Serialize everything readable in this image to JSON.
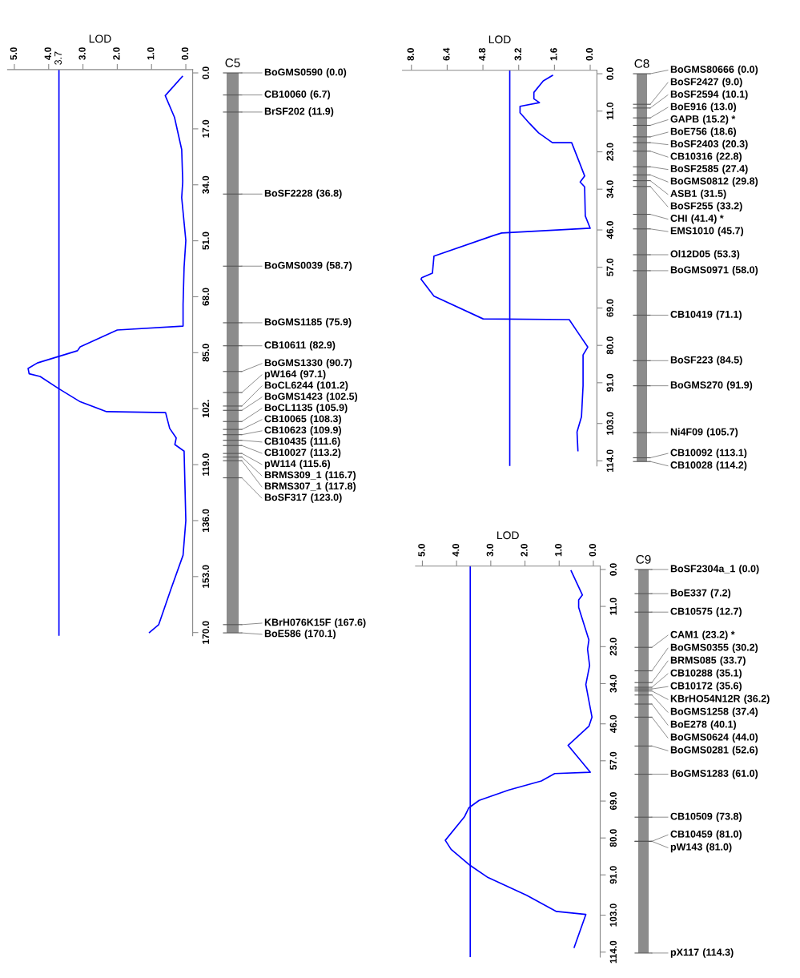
{
  "chart_data": [
    {
      "type": "line",
      "xlabel": "LOD",
      "xlim": [
        5.2,
        -0.2
      ],
      "xticks": [
        {
          "value": 5,
          "label": "5.0"
        },
        {
          "value": 4,
          "label": "4.0"
        },
        {
          "value": 3,
          "label": "3.0"
        },
        {
          "value": 2,
          "label": "2.0"
        },
        {
          "value": 1,
          "label": "1.0"
        },
        {
          "value": 0,
          "label": "0.0"
        }
      ],
      "ylim": [
        171,
        -1
      ],
      "yticks": [
        {
          "value": 0,
          "label": "0.0"
        },
        {
          "value": 17,
          "label": "17.0"
        },
        {
          "value": 34,
          "label": "34.0"
        },
        {
          "value": 51,
          "label": "51.0"
        },
        {
          "value": 68,
          "label": "68.0"
        },
        {
          "value": 85,
          "label": "85.0"
        },
        {
          "value": 102,
          "label": "102."
        },
        {
          "value": 119,
          "label": "119.0"
        },
        {
          "value": 136,
          "label": "136.0"
        },
        {
          "value": 153,
          "label": "153.0"
        },
        {
          "value": 170,
          "label": "170.0"
        }
      ],
      "series": [
        {
          "color": "#0000ff",
          "x": [
            0.1,
            0.6,
            0.33,
            0.12,
            0.09,
            0.12,
            0.0,
            0.05,
            0.08,
            0.08,
            2.0,
            3.08,
            3.16,
            4.33,
            4.6,
            4.57,
            4.25,
            3.71,
            3.08,
            2.31,
            0.59,
            0.47,
            0.28,
            0.32,
            0.05,
            0.0,
            0.08,
            0.44,
            0.79,
            1.06
          ],
          "values": [
            1.1,
            6.9,
            13.5,
            23.3,
            33.0,
            37.9,
            50.9,
            59.0,
            70.3,
            76.9,
            78.1,
            83.2,
            84.4,
            88.1,
            89.8,
            91.4,
            92.2,
            95.9,
            99.9,
            102.9,
            103.2,
            108.0,
            110.9,
            112.9,
            114.9,
            136.0,
            146.5,
            157.0,
            167.6,
            170.0
          ]
        }
      ],
      "marker": "none",
      "line_style": "solid",
      "ref_lines": [
        {
          "axis": "x",
          "value": 3.7,
          "label": "3.7",
          "color": "#0000ff"
        }
      ]
    },
    {
      "type": "other",
      "title": "C5",
      "categories": [
        "BoGMS0590",
        "CB10060",
        "BrSF202",
        "BoSF2228",
        "BoGMS0039",
        "BoGMS1185",
        "CB10611",
        "BoGMS1330",
        "pW164",
        "BoCL6244",
        "BoGMS1423",
        "BoCL1135",
        "CB10065",
        "CB10623",
        "CB10435",
        "CB10027",
        "pW114",
        "BRMS309_1",
        "BRMS307_1",
        "BoSF317",
        "KBrH076K15F",
        "BoE586"
      ],
      "value_labels": [
        "(0.0)",
        "(6.7)",
        "(11.9)",
        "(36.8)",
        "(58.7)",
        "(75.9)",
        "(82.9)",
        "(90.7)",
        "(97.1)",
        "(101.2)",
        "(102.5)",
        "(105.9)",
        "(108.3)",
        "(109.9)",
        "(111.6)",
        "(113.2)",
        "(115.6)",
        "(116.7)",
        "(117.8)",
        "(123.0)",
        "(167.6)",
        "(170.1)"
      ],
      "values": [
        0.0,
        6.7,
        11.9,
        36.8,
        58.7,
        75.9,
        82.9,
        90.7,
        97.1,
        101.2,
        102.5,
        105.9,
        108.3,
        109.9,
        111.6,
        113.2,
        115.6,
        116.7,
        117.8,
        123.0,
        167.6,
        170.1
      ]
    },
    {
      "type": "line",
      "xlabel": "LOD",
      "xlim": [
        8.4,
        -0.3
      ],
      "xticks": [
        {
          "value": 8,
          "label": "8.0"
        },
        6.4,
        4.8,
        3.2,
        1.6,
        {
          "value": 0,
          "label": "0.0"
        }
      ],
      "ylim": [
        115.5,
        -1
      ],
      "yticks": [
        {
          "value": 0,
          "label": "0.0"
        },
        {
          "value": 11,
          "label": "11.0"
        },
        {
          "value": 23,
          "label": "23.0"
        },
        {
          "value": 34,
          "label": "34.0"
        },
        {
          "value": 46,
          "label": "46.0"
        },
        {
          "value": 57,
          "label": "57.0"
        },
        {
          "value": 69,
          "label": "69.0"
        },
        {
          "value": 80,
          "label": "80.0"
        },
        {
          "value": 91,
          "label": "91.0"
        },
        {
          "value": 103,
          "label": "103.0"
        },
        {
          "value": 114,
          "label": "114.0"
        }
      ],
      "series": [
        {
          "color": "#0000ff",
          "x": [
            1.69,
            2.1,
            2.52,
            2.52,
            2.27,
            3.14,
            3.14,
            2.72,
            2.31,
            1.69,
            0.83,
            0.52,
            0.25,
            0.45,
            0.25,
            0.22,
            0.0,
            3.96,
            4.31,
            6.99,
            7.06,
            7.54,
            7.57,
            6.99,
            4.79,
            0.94,
            0.52,
            0.11,
            0.32,
            0.32,
            0.39,
            0.59,
            0.55
          ],
          "values": [
            0.5,
            2.1,
            5.5,
            7.4,
            8.5,
            9.6,
            11.5,
            14.6,
            17.4,
            20.3,
            20.3,
            25.5,
            30.1,
            31.9,
            33.3,
            41.9,
            45.5,
            46.9,
            47.6,
            53.7,
            58.7,
            60.1,
            60.5,
            65.5,
            72.2,
            72.4,
            76.5,
            80.5,
            82.8,
            91.9,
            101.0,
            105.5,
            111.0
          ]
        }
      ],
      "marker": "none",
      "line_style": "solid",
      "ref_lines": [
        {
          "axis": "x",
          "value": 3.6,
          "color": "#0000ff"
        }
      ]
    },
    {
      "type": "other",
      "title": "C8",
      "categories": [
        "BoGMS80666",
        "BoSF2427",
        "BoSF2594",
        "BoE916",
        "GAPB",
        "BoE756",
        "BoSF2403",
        "CB10316",
        "BoSF2585",
        "BoGMS0812",
        "ASB1",
        "BoSF255",
        "CHI",
        "EMS1010",
        "Ol12D05",
        "BoGMS0971",
        "CB10419",
        "BoSF223",
        "BoGMS270",
        "Ni4F09",
        "CB10092",
        "CB10028"
      ],
      "value_labels": [
        "(0.0)",
        "(9.0)",
        "(10.1)",
        "(13.0)",
        "(15.2) *",
        "(18.6)",
        "(20.3)",
        "(22.8)",
        "(27.4)",
        "(29.8)",
        "(31.5)",
        "(33.2)",
        "(41.4) *",
        "(45.7)",
        "(53.3)",
        "(58.0)",
        "(71.1)",
        "(84.5)",
        "(91.9)",
        "(105.7)",
        "(113.1)",
        "(114.2)"
      ],
      "values": [
        0.0,
        9.0,
        10.1,
        13.0,
        15.2,
        18.6,
        20.3,
        22.8,
        27.4,
        29.8,
        31.5,
        33.2,
        41.4,
        45.7,
        53.3,
        58.0,
        71.1,
        84.5,
        91.9,
        105.7,
        113.1,
        114.2
      ]
    },
    {
      "type": "line",
      "xlabel": "LOD",
      "xlim": [
        5.2,
        -0.2
      ],
      "xticks": [
        {
          "value": 5,
          "label": "5.0"
        },
        {
          "value": 4,
          "label": "4.0"
        },
        {
          "value": 3,
          "label": "3.0"
        },
        {
          "value": 2,
          "label": "2.0"
        },
        {
          "value": 1,
          "label": "1.0"
        },
        {
          "value": 0,
          "label": "0.0"
        }
      ],
      "ylim": [
        115.5,
        -1
      ],
      "yticks": [
        {
          "value": 0,
          "label": "0.0"
        },
        {
          "value": 11,
          "label": "11.0"
        },
        {
          "value": 23,
          "label": "23.0"
        },
        {
          "value": 34,
          "label": "34.0"
        },
        {
          "value": 46,
          "label": "46.0"
        },
        {
          "value": 57,
          "label": "57.0"
        },
        {
          "value": 69,
          "label": "69.0"
        },
        {
          "value": 80,
          "label": "80.0"
        },
        {
          "value": 91,
          "label": "91.0"
        },
        {
          "value": 103,
          "label": "103.0"
        },
        {
          "value": 114,
          "label": "114.0"
        }
      ],
      "series": [
        {
          "color": "#0000ff",
          "x": [
            0.65,
            0.32,
            0.43,
            0.43,
            0.13,
            0.17,
            0.11,
            0.22,
            0.04,
            0.13,
            0.74,
            0.09,
            1.13,
            1.52,
            2.47,
            3.34,
            3.64,
            3.77,
            4.33,
            4.16,
            3.6,
            3.08,
            1.95,
            1.08,
            0.22,
            0.56
          ],
          "values": [
            0.4,
            7.6,
            9.1,
            11.3,
            21.0,
            23.7,
            28.6,
            34.3,
            44.0,
            46.7,
            52.4,
            60.4,
            60.8,
            63.0,
            65.7,
            68.8,
            71.0,
            73.7,
            80.7,
            83.4,
            88.2,
            91.8,
            97.1,
            101.9,
            102.8,
            112.6
          ]
        }
      ],
      "marker": "none",
      "line_style": "solid",
      "ref_lines": [
        {
          "axis": "x",
          "value": 3.6,
          "color": "#0000ff"
        }
      ]
    },
    {
      "type": "other",
      "title": "C9",
      "categories": [
        "BoSF2304a_1",
        "BoE337",
        "CB10575",
        "CAM1",
        "BoGMS0355",
        "BRMS085",
        "CB10288",
        "CB10172",
        "KBrHO54N12R",
        "BoGMS1258",
        "BoE278",
        "BoGMS0624",
        "BoGMS0281",
        "BoGMS1283",
        "CB10509",
        "CB10459",
        "pW143",
        "pX117"
      ],
      "value_labels": [
        "(0.0)",
        "(7.2)",
        "(12.7)",
        "(23.2) *",
        "(30.2)",
        "(33.7)",
        "(35.1)",
        "(35.6)",
        "(36.2)",
        "(37.4)",
        "(40.1)",
        "(44.0)",
        "(52.6)",
        "(61.0)",
        "(73.8)",
        "(81.0)",
        "(81.0)",
        "(114.3)"
      ],
      "values": [
        0.0,
        7.2,
        12.7,
        23.2,
        30.2,
        33.7,
        35.1,
        35.6,
        36.2,
        37.4,
        40.1,
        44.0,
        52.6,
        61.0,
        73.8,
        81.0,
        81.0,
        114.3
      ]
    }
  ]
}
